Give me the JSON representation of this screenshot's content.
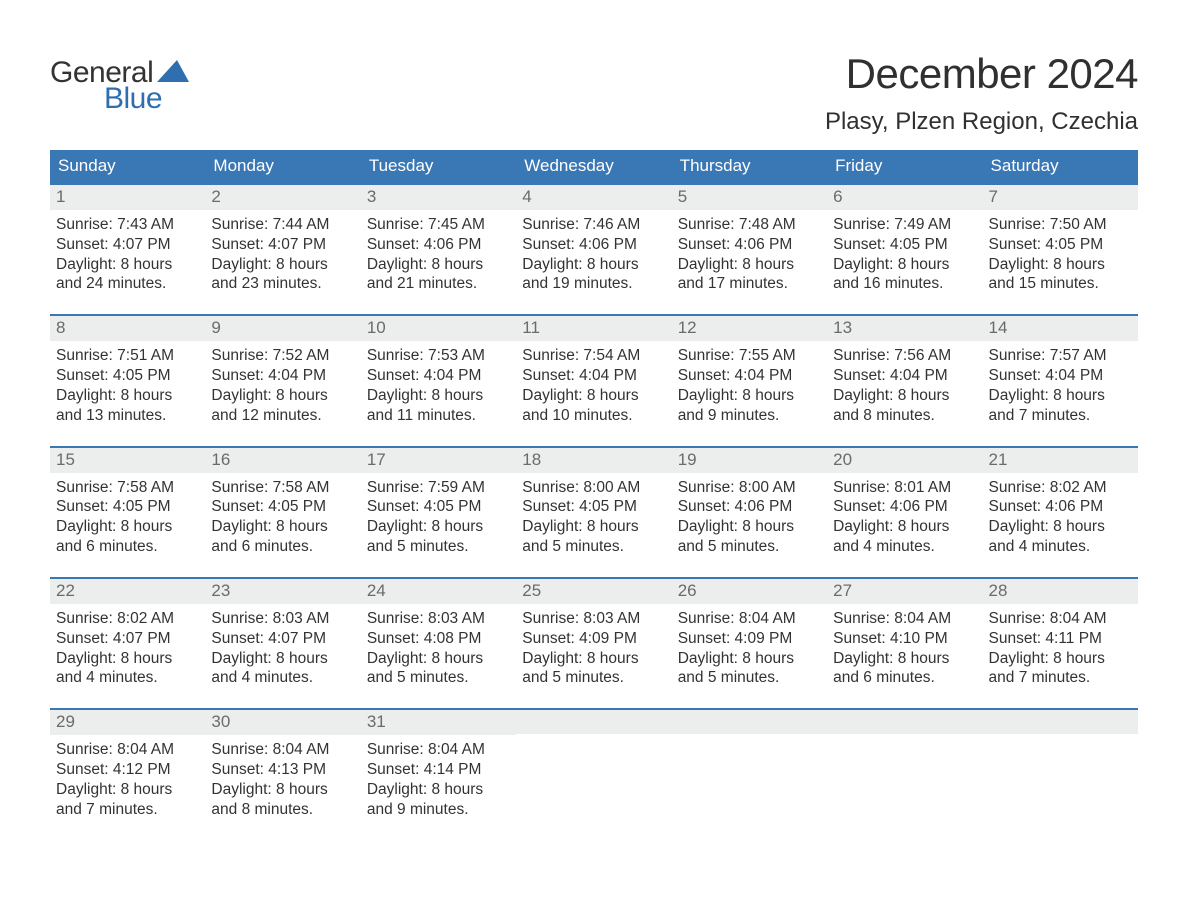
{
  "logo": {
    "top": "General",
    "bottom": "Blue"
  },
  "header": {
    "month_title": "December 2024",
    "location": "Plasy, Plzen Region, Czechia"
  },
  "colors": {
    "header_bg": "#3a77b5",
    "header_text": "#ffffff",
    "day_bar_bg": "#eceded",
    "day_number_color": "#6b6b6b",
    "body_text": "#333333",
    "logo_blue": "#2f6fb0",
    "week_border": "#3a77b5"
  },
  "weekdays": [
    "Sunday",
    "Monday",
    "Tuesday",
    "Wednesday",
    "Thursday",
    "Friday",
    "Saturday"
  ],
  "weeks": [
    [
      {
        "n": "1",
        "sunrise": "Sunrise: 7:43 AM",
        "sunset": "Sunset: 4:07 PM",
        "day1": "Daylight: 8 hours",
        "day2": "and 24 minutes."
      },
      {
        "n": "2",
        "sunrise": "Sunrise: 7:44 AM",
        "sunset": "Sunset: 4:07 PM",
        "day1": "Daylight: 8 hours",
        "day2": "and 23 minutes."
      },
      {
        "n": "3",
        "sunrise": "Sunrise: 7:45 AM",
        "sunset": "Sunset: 4:06 PM",
        "day1": "Daylight: 8 hours",
        "day2": "and 21 minutes."
      },
      {
        "n": "4",
        "sunrise": "Sunrise: 7:46 AM",
        "sunset": "Sunset: 4:06 PM",
        "day1": "Daylight: 8 hours",
        "day2": "and 19 minutes."
      },
      {
        "n": "5",
        "sunrise": "Sunrise: 7:48 AM",
        "sunset": "Sunset: 4:06 PM",
        "day1": "Daylight: 8 hours",
        "day2": "and 17 minutes."
      },
      {
        "n": "6",
        "sunrise": "Sunrise: 7:49 AM",
        "sunset": "Sunset: 4:05 PM",
        "day1": "Daylight: 8 hours",
        "day2": "and 16 minutes."
      },
      {
        "n": "7",
        "sunrise": "Sunrise: 7:50 AM",
        "sunset": "Sunset: 4:05 PM",
        "day1": "Daylight: 8 hours",
        "day2": "and 15 minutes."
      }
    ],
    [
      {
        "n": "8",
        "sunrise": "Sunrise: 7:51 AM",
        "sunset": "Sunset: 4:05 PM",
        "day1": "Daylight: 8 hours",
        "day2": "and 13 minutes."
      },
      {
        "n": "9",
        "sunrise": "Sunrise: 7:52 AM",
        "sunset": "Sunset: 4:04 PM",
        "day1": "Daylight: 8 hours",
        "day2": "and 12 minutes."
      },
      {
        "n": "10",
        "sunrise": "Sunrise: 7:53 AM",
        "sunset": "Sunset: 4:04 PM",
        "day1": "Daylight: 8 hours",
        "day2": "and 11 minutes."
      },
      {
        "n": "11",
        "sunrise": "Sunrise: 7:54 AM",
        "sunset": "Sunset: 4:04 PM",
        "day1": "Daylight: 8 hours",
        "day2": "and 10 minutes."
      },
      {
        "n": "12",
        "sunrise": "Sunrise: 7:55 AM",
        "sunset": "Sunset: 4:04 PM",
        "day1": "Daylight: 8 hours",
        "day2": "and 9 minutes."
      },
      {
        "n": "13",
        "sunrise": "Sunrise: 7:56 AM",
        "sunset": "Sunset: 4:04 PM",
        "day1": "Daylight: 8 hours",
        "day2": "and 8 minutes."
      },
      {
        "n": "14",
        "sunrise": "Sunrise: 7:57 AM",
        "sunset": "Sunset: 4:04 PM",
        "day1": "Daylight: 8 hours",
        "day2": "and 7 minutes."
      }
    ],
    [
      {
        "n": "15",
        "sunrise": "Sunrise: 7:58 AM",
        "sunset": "Sunset: 4:05 PM",
        "day1": "Daylight: 8 hours",
        "day2": "and 6 minutes."
      },
      {
        "n": "16",
        "sunrise": "Sunrise: 7:58 AM",
        "sunset": "Sunset: 4:05 PM",
        "day1": "Daylight: 8 hours",
        "day2": "and 6 minutes."
      },
      {
        "n": "17",
        "sunrise": "Sunrise: 7:59 AM",
        "sunset": "Sunset: 4:05 PM",
        "day1": "Daylight: 8 hours",
        "day2": "and 5 minutes."
      },
      {
        "n": "18",
        "sunrise": "Sunrise: 8:00 AM",
        "sunset": "Sunset: 4:05 PM",
        "day1": "Daylight: 8 hours",
        "day2": "and 5 minutes."
      },
      {
        "n": "19",
        "sunrise": "Sunrise: 8:00 AM",
        "sunset": "Sunset: 4:06 PM",
        "day1": "Daylight: 8 hours",
        "day2": "and 5 minutes."
      },
      {
        "n": "20",
        "sunrise": "Sunrise: 8:01 AM",
        "sunset": "Sunset: 4:06 PM",
        "day1": "Daylight: 8 hours",
        "day2": "and 4 minutes."
      },
      {
        "n": "21",
        "sunrise": "Sunrise: 8:02 AM",
        "sunset": "Sunset: 4:06 PM",
        "day1": "Daylight: 8 hours",
        "day2": "and 4 minutes."
      }
    ],
    [
      {
        "n": "22",
        "sunrise": "Sunrise: 8:02 AM",
        "sunset": "Sunset: 4:07 PM",
        "day1": "Daylight: 8 hours",
        "day2": "and 4 minutes."
      },
      {
        "n": "23",
        "sunrise": "Sunrise: 8:03 AM",
        "sunset": "Sunset: 4:07 PM",
        "day1": "Daylight: 8 hours",
        "day2": "and 4 minutes."
      },
      {
        "n": "24",
        "sunrise": "Sunrise: 8:03 AM",
        "sunset": "Sunset: 4:08 PM",
        "day1": "Daylight: 8 hours",
        "day2": "and 5 minutes."
      },
      {
        "n": "25",
        "sunrise": "Sunrise: 8:03 AM",
        "sunset": "Sunset: 4:09 PM",
        "day1": "Daylight: 8 hours",
        "day2": "and 5 minutes."
      },
      {
        "n": "26",
        "sunrise": "Sunrise: 8:04 AM",
        "sunset": "Sunset: 4:09 PM",
        "day1": "Daylight: 8 hours",
        "day2": "and 5 minutes."
      },
      {
        "n": "27",
        "sunrise": "Sunrise: 8:04 AM",
        "sunset": "Sunset: 4:10 PM",
        "day1": "Daylight: 8 hours",
        "day2": "and 6 minutes."
      },
      {
        "n": "28",
        "sunrise": "Sunrise: 8:04 AM",
        "sunset": "Sunset: 4:11 PM",
        "day1": "Daylight: 8 hours",
        "day2": "and 7 minutes."
      }
    ],
    [
      {
        "n": "29",
        "sunrise": "Sunrise: 8:04 AM",
        "sunset": "Sunset: 4:12 PM",
        "day1": "Daylight: 8 hours",
        "day2": "and 7 minutes."
      },
      {
        "n": "30",
        "sunrise": "Sunrise: 8:04 AM",
        "sunset": "Sunset: 4:13 PM",
        "day1": "Daylight: 8 hours",
        "day2": "and 8 minutes."
      },
      {
        "n": "31",
        "sunrise": "Sunrise: 8:04 AM",
        "sunset": "Sunset: 4:14 PM",
        "day1": "Daylight: 8 hours",
        "day2": "and 9 minutes."
      },
      null,
      null,
      null,
      null
    ]
  ]
}
